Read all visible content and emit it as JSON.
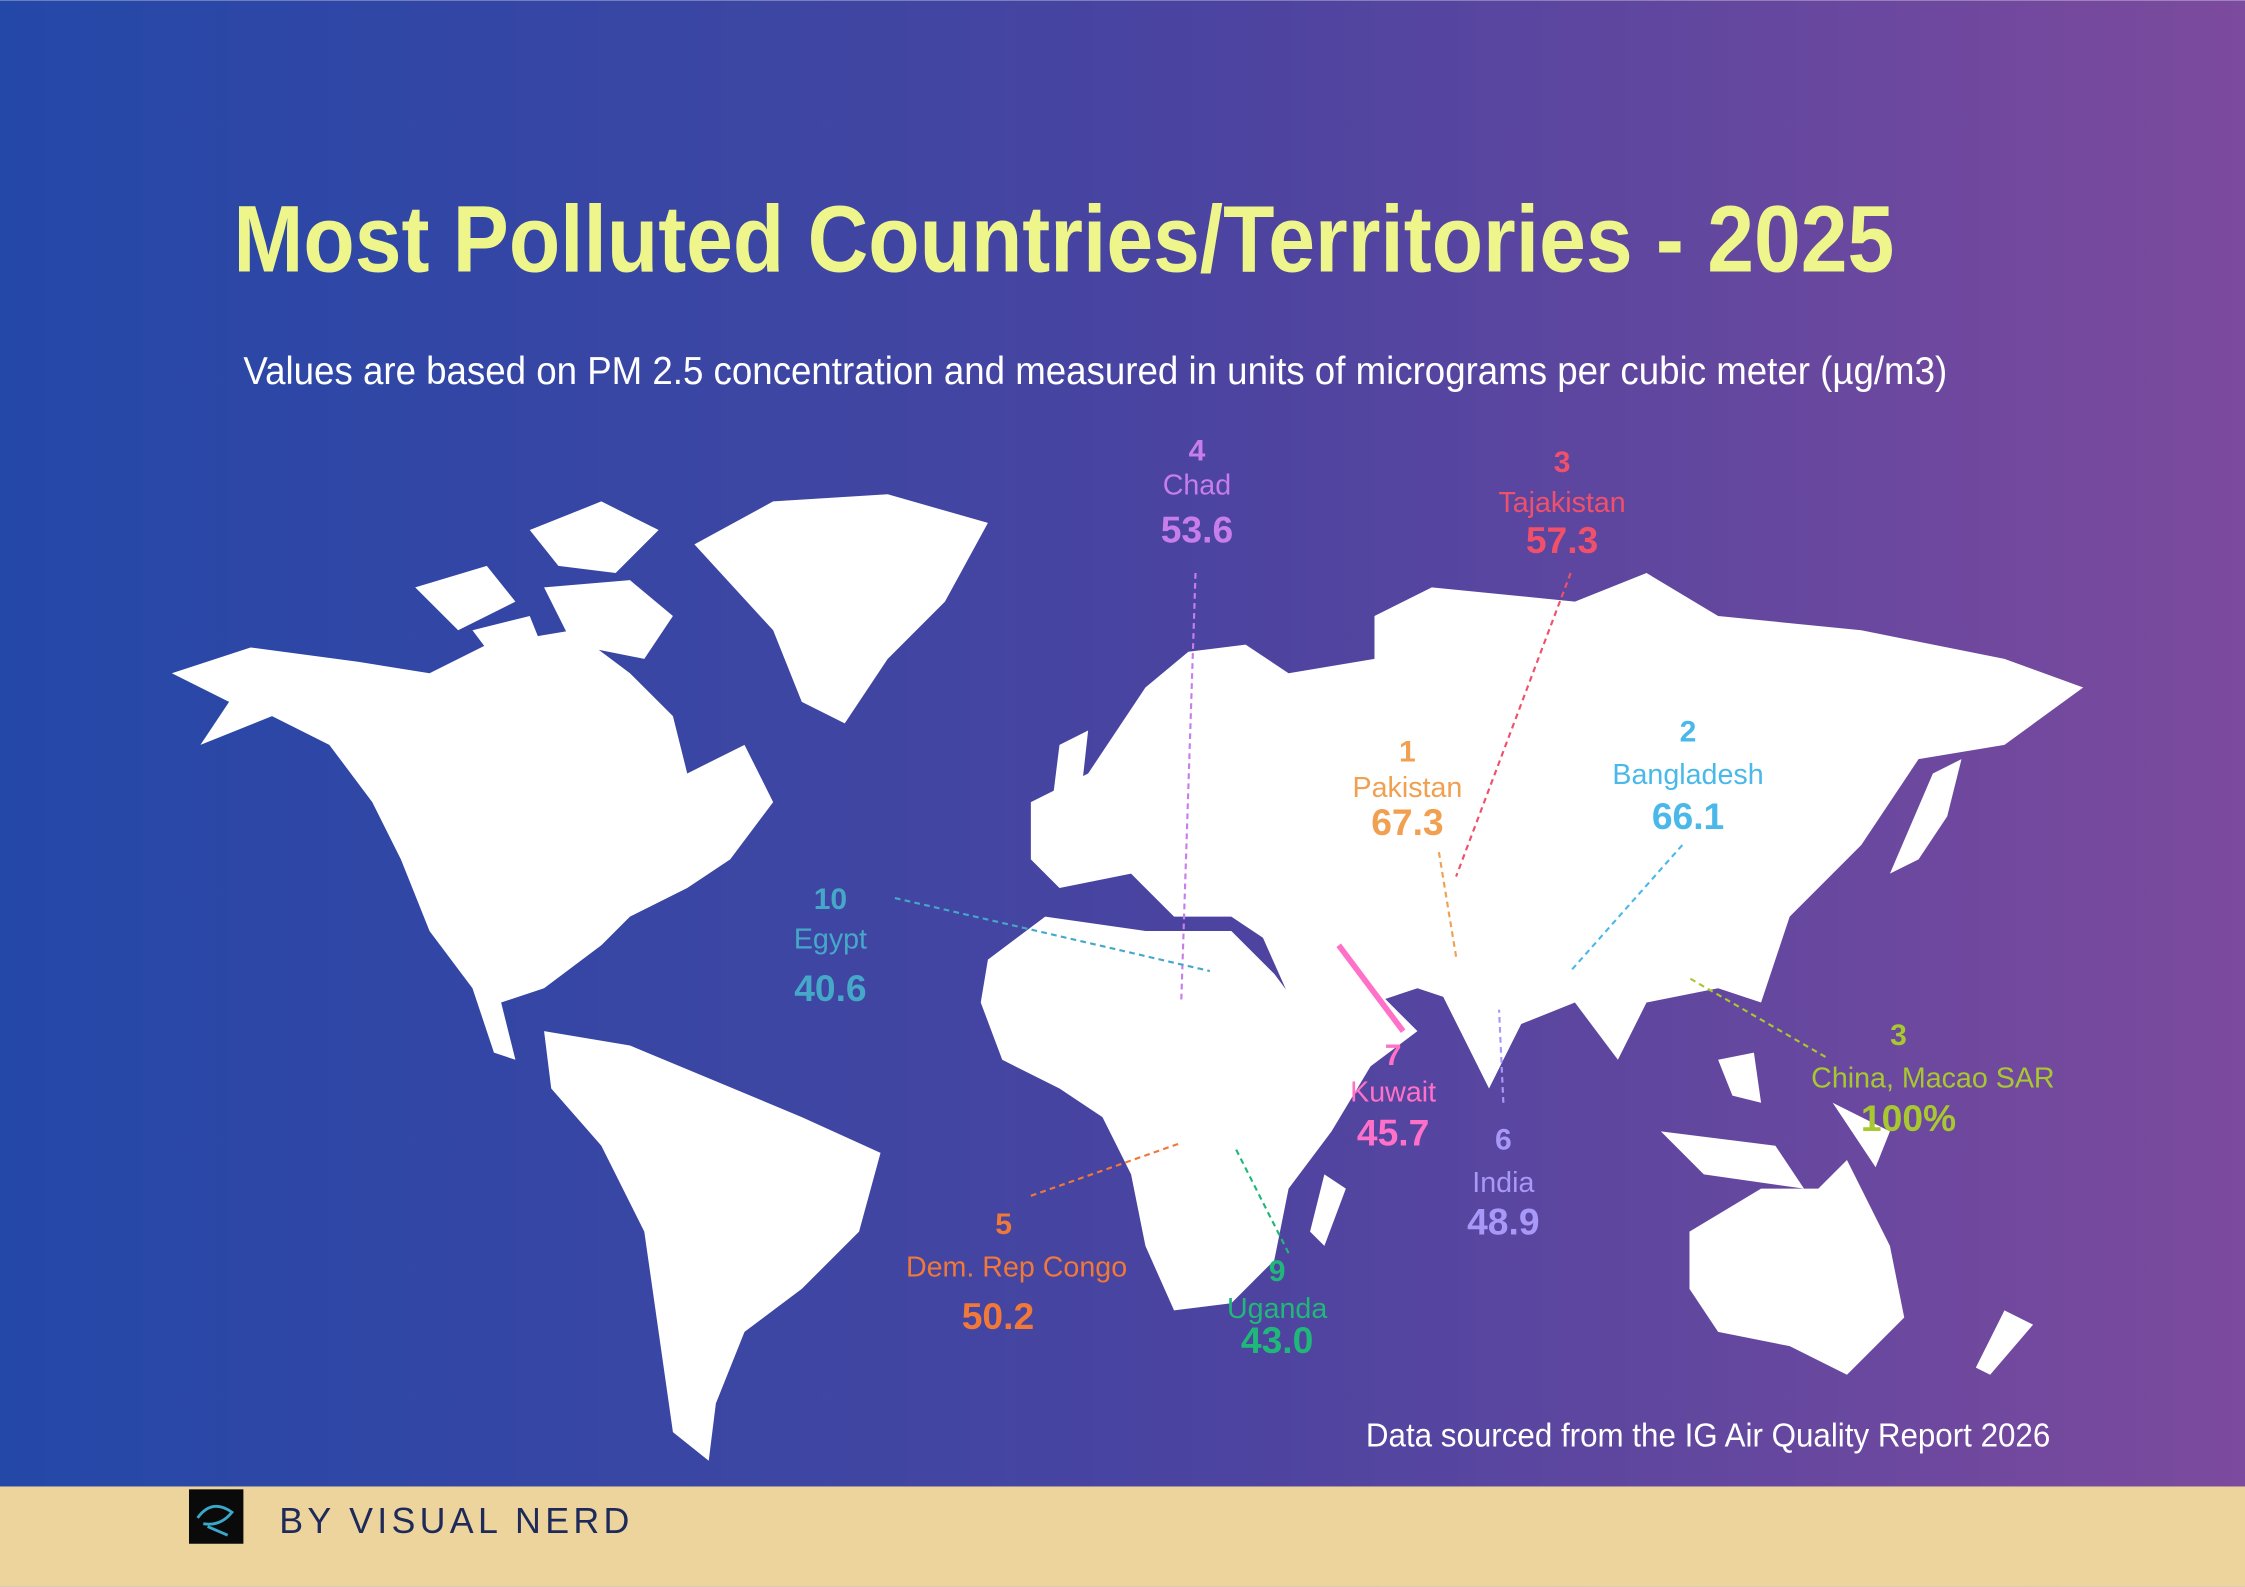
{
  "header": {
    "title": "Most Polluted Countries/Territories - 2025",
    "subtitle": "Values are based on PM 2.5 concentration and measured in units of micrograms per cubic meter (µg/m3)"
  },
  "callouts": [
    {
      "rank": 4,
      "name": "Chad",
      "value": "53.6"
    },
    {
      "rank": 3,
      "name": "Tajakistan",
      "value": "57.3"
    },
    {
      "rank": 1,
      "name": "Pakistan",
      "value": "67.3"
    },
    {
      "rank": 2,
      "name": "Bangladesh",
      "value": "66.1"
    },
    {
      "rank": 10,
      "name": "Egypt",
      "value": "40.6"
    },
    {
      "rank": 3,
      "name": "China, Macao SAR",
      "value": "100%"
    },
    {
      "rank": 7,
      "name": "Kuwait",
      "value": "45.7"
    },
    {
      "rank": 6,
      "name": "India",
      "value": "48.9"
    },
    {
      "rank": 5,
      "name": "Dem. Rep Congo",
      "value": "50.2"
    },
    {
      "rank": 9,
      "name": "Uganda",
      "value": "43.0"
    }
  ],
  "source": "Data sourced from the IG Air Quality Report 2026",
  "footer": {
    "brand": "BY VISUAL NERD"
  }
}
